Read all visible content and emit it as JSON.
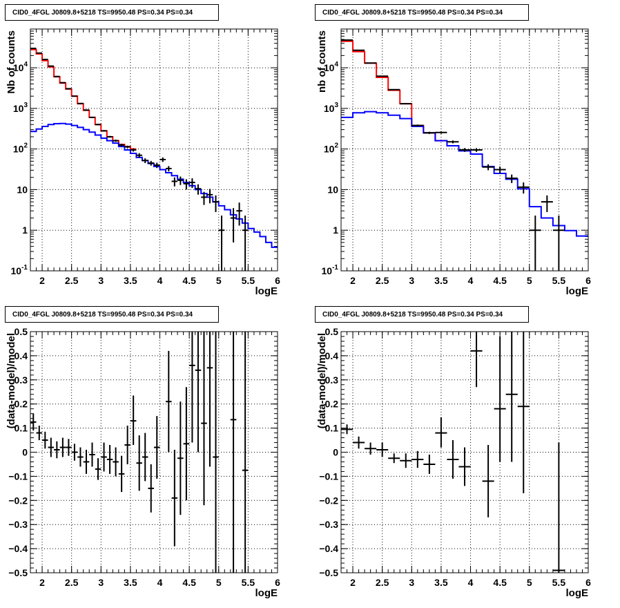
{
  "chart_data": [
    {
      "type": "step",
      "title": "CID0_4FGL J0809.8+5218 TS=9950.48 PS=0.34 PS=0.34",
      "xlabel": "logE",
      "ylabel": "Nb of counts",
      "xlim": [
        1.8,
        6
      ],
      "ylim": [
        0.1,
        90000
      ],
      "yscale": "log",
      "grid": true,
      "x_ticks": [
        "2",
        "2.5",
        "3",
        "3.5",
        "4",
        "4.5",
        "5",
        "5.5",
        "6"
      ],
      "y_ticks": [
        "10^-1",
        "1",
        "10",
        "10^2",
        "10^3",
        "10^4"
      ],
      "series": [
        {
          "color": "#ff0000",
          "kind": "step",
          "edges": [
            1.8,
            1.9,
            2.0,
            2.1,
            2.2,
            2.3,
            2.4,
            2.5,
            2.6,
            2.7,
            2.8,
            2.9,
            3.0,
            3.1,
            3.2,
            3.3,
            3.4,
            3.5,
            3.6
          ],
          "values": [
            28000,
            22000,
            15000,
            10500,
            6000,
            4200,
            3000,
            2000,
            1300,
            900,
            600,
            400,
            280,
            200,
            160,
            130,
            115,
            100
          ]
        },
        {
          "color": "#0000ff",
          "kind": "step",
          "edges": [
            1.8,
            1.9,
            2.0,
            2.1,
            2.2,
            2.3,
            2.4,
            2.5,
            2.6,
            2.7,
            2.8,
            2.9,
            3.0,
            3.1,
            3.2,
            3.3,
            3.4,
            3.5,
            3.6,
            3.7,
            3.8,
            3.9,
            4.0,
            4.1,
            4.2,
            4.3,
            4.4,
            4.5,
            4.6,
            4.7,
            4.8,
            4.9,
            5.0,
            5.1,
            5.2,
            5.3,
            5.4,
            5.5,
            5.6,
            5.7,
            5.8,
            5.9,
            6.0
          ],
          "values": [
            270,
            310,
            360,
            400,
            420,
            425,
            410,
            380,
            340,
            300,
            260,
            220,
            185,
            160,
            140,
            115,
            95,
            78,
            62,
            52,
            44,
            37,
            31,
            26,
            22,
            18,
            15,
            12.5,
            10,
            8,
            6.5,
            5,
            4,
            3.2,
            2.4,
            1.9,
            1.5,
            1.1,
            0.9,
            0.7,
            0.5,
            0.38
          ]
        },
        {
          "color": "#000000",
          "kind": "points",
          "x": [
            1.85,
            1.95,
            2.05,
            2.15,
            2.25,
            2.35,
            2.45,
            2.55,
            2.65,
            2.75,
            2.85,
            2.95,
            3.05,
            3.15,
            3.25,
            3.35,
            3.45,
            3.55,
            3.65,
            3.75,
            3.85,
            3.95,
            4.05,
            4.15,
            4.25,
            4.35,
            4.45,
            4.55,
            4.65,
            4.75,
            4.85,
            4.95,
            5.05,
            5.25,
            5.35,
            5.45
          ],
          "xerr": 0.05,
          "y": [
            30000,
            23000,
            16000,
            11000,
            6100,
            4300,
            3050,
            2000,
            1320,
            910,
            600,
            400,
            280,
            200,
            160,
            125,
            113,
            95,
            70,
            52,
            45,
            40,
            55,
            33,
            16,
            17,
            14,
            15,
            10.5,
            6.5,
            7.5,
            5.0,
            1.0,
            2.0,
            3.0,
            1.0
          ],
          "ylo": [
            29500,
            22500,
            15700,
            10800,
            6000,
            4200,
            2980,
            1950,
            1280,
            880,
            580,
            385,
            268,
            190,
            150,
            115,
            105,
            86,
            61,
            45,
            39,
            34,
            48,
            28,
            12,
            13,
            10,
            11,
            7.5,
            4.2,
            4.6,
            2.8,
            0.08,
            0.5,
            1.3,
            0.08
          ],
          "yhi": [
            30500,
            23500,
            16300,
            11200,
            6200,
            4400,
            3120,
            2050,
            1360,
            940,
            620,
            415,
            292,
            210,
            170,
            135,
            121,
            104,
            79,
            59,
            51,
            46,
            62,
            38,
            20,
            21,
            18,
            19,
            13.5,
            8.8,
            10.4,
            7.2,
            2.3,
            3.5,
            4.8,
            2.3
          ]
        }
      ]
    },
    {
      "type": "step",
      "title": "CID0_4FGL J0809.8+5218 TS=9950.48 PS=0.34 PS=0.34",
      "xlabel": "logE",
      "ylabel": "nb of counts",
      "xlim": [
        1.8,
        6
      ],
      "ylim": [
        0.1,
        90000
      ],
      "yscale": "log",
      "grid": true,
      "x_ticks": [
        "2",
        "2.5",
        "3",
        "3.5",
        "4",
        "4.5",
        "5",
        "5.5",
        "6"
      ],
      "y_ticks": [
        "10^-1",
        "1",
        "10",
        "10^2",
        "10^3",
        "10^4"
      ],
      "series": [
        {
          "color": "#ff0000",
          "kind": "step",
          "edges": [
            1.8,
            2.0,
            2.2,
            2.4,
            2.6,
            2.8,
            3.0,
            3.2,
            3.4,
            3.6
          ],
          "values": [
            45000,
            25000,
            13000,
            5800,
            2800,
            1300,
            380,
            250,
            160
          ]
        },
        {
          "color": "#0000ff",
          "kind": "step",
          "edges": [
            1.8,
            2.0,
            2.2,
            2.4,
            2.6,
            2.8,
            3.0,
            3.2,
            3.4,
            3.6,
            3.8,
            4.0,
            4.2,
            4.4,
            4.6,
            4.8,
            5.0,
            5.2,
            5.4,
            5.6,
            5.8,
            6.0
          ],
          "values": [
            600,
            780,
            830,
            780,
            680,
            560,
            360,
            250,
            160,
            120,
            90,
            75,
            37,
            25,
            18,
            10.5,
            3.8,
            2.0,
            1.3,
            0.98,
            0.72
          ]
        },
        {
          "color": "#000000",
          "kind": "points",
          "x": [
            1.9,
            2.1,
            2.3,
            2.5,
            2.7,
            2.9,
            3.1,
            3.3,
            3.5,
            3.7,
            3.9,
            4.1,
            4.3,
            4.5,
            4.7,
            4.9,
            5.1,
            5.3,
            5.5
          ],
          "xerr": 0.1,
          "y": [
            48000,
            27000,
            13100,
            6200,
            2900,
            1300,
            380,
            250,
            255,
            150,
            95,
            95,
            36,
            31,
            19,
            11.5,
            1.0,
            5.0,
            1.0
          ],
          "ylo": [
            47500,
            26700,
            12900,
            6100,
            2850,
            1260,
            360,
            234,
            238,
            138,
            85,
            85,
            30,
            25,
            14.5,
            8,
            0.08,
            2.8,
            0.08
          ],
          "yhi": [
            48500,
            27300,
            13300,
            6300,
            2950,
            1340,
            400,
            266,
            272,
            162,
            105,
            105,
            42,
            37,
            23.5,
            15,
            2.3,
            7.2,
            2.3
          ]
        }
      ]
    },
    {
      "type": "scatter",
      "title": "CID0_4FGL J0809.8+5218 TS=9950.48 PS=0.34 PS=0.34",
      "xlabel": "logE",
      "ylabel": "(data-model)/model",
      "xlim": [
        1.8,
        6
      ],
      "ylim": [
        -0.5,
        0.5
      ],
      "grid": true,
      "x_ticks": [
        "2",
        "2.5",
        "3",
        "3.5",
        "4",
        "4.5",
        "5",
        "5.5",
        "6"
      ],
      "y_ticks": [
        "−0.5",
        "−0.4",
        "−0.3",
        "−0.2",
        "−0.1",
        "0",
        "0.1",
        "0.2",
        "0.3",
        "0.4",
        "0.5"
      ],
      "series": [
        {
          "color": "#000000",
          "kind": "points",
          "x": [
            1.85,
            1.95,
            2.05,
            2.15,
            2.25,
            2.35,
            2.45,
            2.55,
            2.65,
            2.75,
            2.85,
            2.95,
            3.05,
            3.15,
            3.25,
            3.35,
            3.45,
            3.55,
            3.65,
            3.75,
            3.85,
            3.95,
            4.15,
            4.25,
            4.35,
            4.45,
            4.55,
            4.65,
            4.75,
            4.85,
            4.95,
            5.25,
            5.45
          ],
          "xerr": 0.05,
          "y": [
            0.125,
            0.08,
            0.05,
            0.02,
            0.01,
            0.02,
            0.02,
            0.0,
            -0.02,
            -0.04,
            -0.01,
            -0.07,
            -0.02,
            -0.03,
            -0.04,
            -0.09,
            0.03,
            0.13,
            -0.045,
            -0.02,
            -0.15,
            0.02,
            0.21,
            -0.19,
            -0.025,
            0.035,
            0.36,
            0.34,
            0.12,
            0.35,
            -0.02,
            0.135,
            -0.075
          ],
          "ylo": [
            0.09,
            0.05,
            0.015,
            -0.02,
            -0.025,
            -0.02,
            -0.015,
            -0.035,
            -0.06,
            -0.09,
            -0.06,
            -0.115,
            -0.08,
            -0.09,
            -0.1,
            -0.165,
            -0.05,
            0.03,
            -0.16,
            -0.12,
            -0.25,
            -0.11,
            0.0,
            -0.39,
            -0.26,
            -0.2,
            0.04,
            0.0,
            -0.22,
            -0.06,
            -0.54,
            -0.54,
            -0.54
          ],
          "yhi": [
            0.16,
            0.11,
            0.085,
            0.06,
            0.045,
            0.06,
            0.055,
            0.035,
            0.02,
            0.01,
            0.04,
            -0.025,
            0.04,
            0.03,
            0.02,
            -0.015,
            0.11,
            0.235,
            0.07,
            0.08,
            -0.05,
            0.15,
            0.42,
            0.01,
            0.21,
            0.27,
            0.54,
            0.54,
            0.54,
            0.54,
            0.54,
            0.54,
            0.54
          ]
        }
      ]
    },
    {
      "type": "scatter",
      "title": "CID0_4FGL J0809.8+5218 TS=9950.48 PS=0.34 PS=0.34",
      "xlabel": "logE",
      "ylabel": "(data-model)/model",
      "xlim": [
        1.8,
        6
      ],
      "ylim": [
        -0.5,
        0.5
      ],
      "grid": true,
      "x_ticks": [
        "2",
        "2.5",
        "3",
        "3.5",
        "4",
        "4.5",
        "5",
        "5.5",
        "6"
      ],
      "y_ticks": [
        "−0.5",
        "−0.4",
        "−0.3",
        "−0.2",
        "−0.1",
        "0",
        "0.1",
        "0.2",
        "0.3",
        "0.4",
        "0.5"
      ],
      "series": [
        {
          "color": "#000000",
          "kind": "points",
          "x": [
            1.9,
            2.1,
            2.3,
            2.5,
            2.7,
            2.9,
            3.1,
            3.3,
            3.5,
            3.7,
            3.9,
            4.1,
            4.3,
            4.5,
            4.7,
            4.9,
            5.5
          ],
          "xerr": 0.1,
          "y": [
            0.095,
            0.04,
            0.015,
            0.01,
            -0.025,
            -0.035,
            -0.03,
            -0.05,
            0.08,
            -0.03,
            -0.06,
            0.42,
            -0.12,
            0.18,
            0.24,
            0.19,
            -0.49
          ],
          "ylo": [
            0.075,
            0.015,
            -0.01,
            -0.02,
            -0.045,
            -0.065,
            -0.065,
            -0.09,
            0.02,
            -0.11,
            -0.14,
            0.27,
            -0.27,
            -0.04,
            -0.04,
            -0.17,
            -0.54
          ],
          "yhi": [
            0.115,
            0.065,
            0.04,
            0.04,
            -0.005,
            -0.005,
            0.005,
            -0.01,
            0.145,
            0.05,
            0.02,
            0.54,
            0.03,
            0.48,
            0.54,
            0.54,
            0.04
          ]
        }
      ]
    }
  ]
}
